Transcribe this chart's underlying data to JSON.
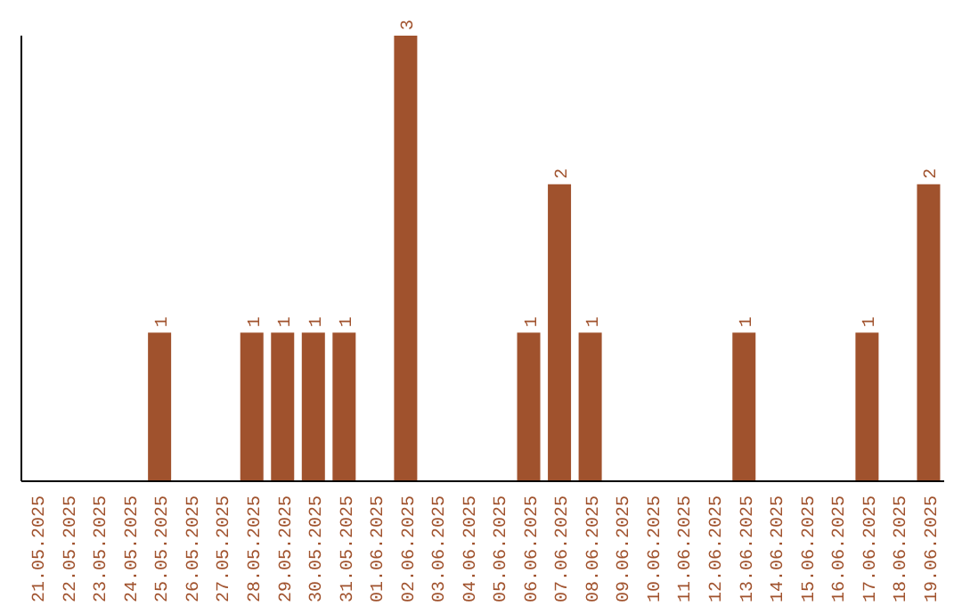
{
  "chart_data": {
    "type": "bar",
    "categories": [
      "21.05.2025",
      "22.05.2025",
      "23.05.2025",
      "24.05.2025",
      "25.05.2025",
      "26.05.2025",
      "27.05.2025",
      "28.05.2025",
      "29.05.2025",
      "30.05.2025",
      "31.05.2025",
      "01.06.2025",
      "02.06.2025",
      "03.06.2025",
      "04.06.2025",
      "05.06.2025",
      "06.06.2025",
      "07.06.2025",
      "08.06.2025",
      "09.06.2025",
      "10.06.2025",
      "11.06.2025",
      "12.06.2025",
      "13.06.2025",
      "14.06.2025",
      "15.06.2025",
      "16.06.2025",
      "17.06.2025",
      "18.06.2025",
      "19.06.2025"
    ],
    "values": [
      0,
      0,
      0,
      0,
      1,
      0,
      0,
      1,
      1,
      1,
      1,
      0,
      3,
      0,
      0,
      0,
      1,
      2,
      1,
      0,
      0,
      0,
      0,
      1,
      0,
      0,
      0,
      1,
      0,
      2
    ],
    "value_labels": [
      null,
      null,
      null,
      null,
      "1",
      null,
      null,
      "1",
      "1",
      "1",
      "1",
      null,
      "3",
      null,
      null,
      null,
      "1",
      "2",
      "1",
      null,
      null,
      null,
      null,
      "1",
      null,
      null,
      null,
      "1",
      null,
      "2"
    ],
    "color": "#a0522d",
    "ylim": [
      0,
      3
    ],
    "tick_labels": "x",
    "grid": false,
    "legend": false
  }
}
